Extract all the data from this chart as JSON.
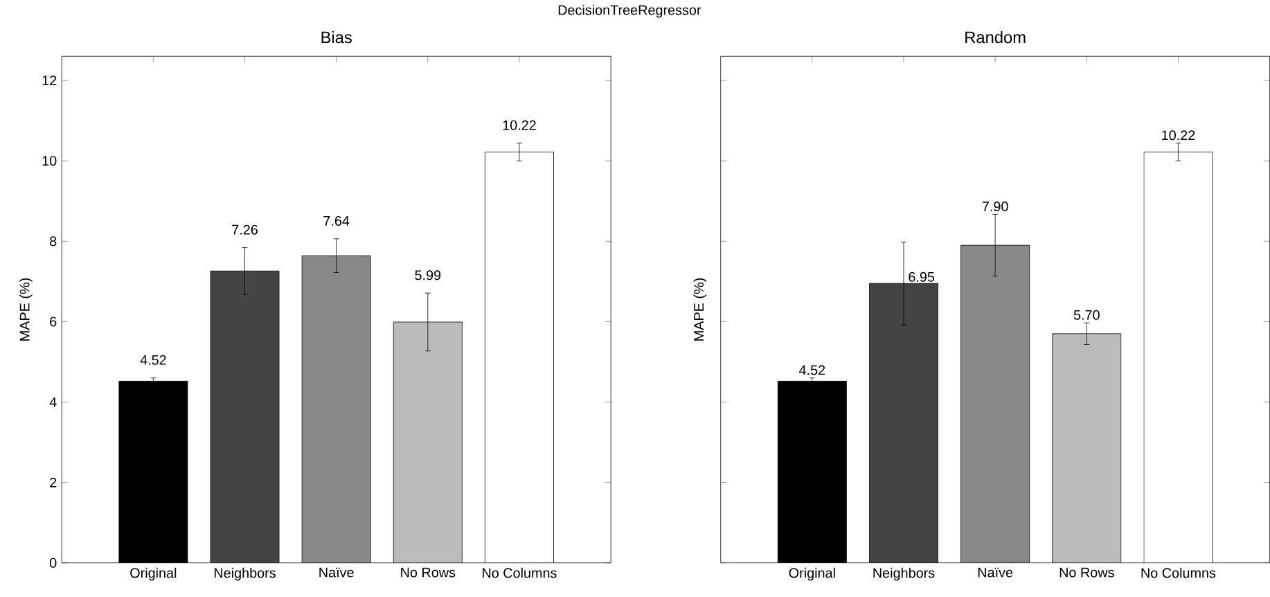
{
  "chart_data": [
    {
      "type": "bar",
      "title": "Bias",
      "ylabel": "MAPE (%)",
      "annotations": [
        "DecisionTreeRegressor"
      ],
      "categories": [
        "Original",
        "Neighbors",
        "Naïve",
        "No Rows",
        "No Columns"
      ],
      "values": [
        4.52,
        7.26,
        7.64,
        5.99,
        10.22
      ],
      "errors": [
        0.08,
        0.58,
        0.42,
        0.72,
        0.22
      ],
      "colors": [
        "#000000",
        "#444444",
        "#888888",
        "#bbbbbb",
        "#ffffff"
      ],
      "data_labels": true,
      "ylim": [
        0,
        12.6
      ],
      "yticks": [
        0,
        2,
        4,
        6,
        8,
        10,
        12
      ]
    },
    {
      "type": "bar",
      "title": "Random",
      "ylabel": "MAPE (%)",
      "categories": [
        "Original",
        "Neighbors",
        "Naïve",
        "No Rows",
        "No Columns"
      ],
      "values": [
        4.52,
        6.95,
        7.9,
        5.7,
        10.22
      ],
      "errors": [
        0.08,
        1.03,
        0.77,
        0.27,
        0.22
      ],
      "colors": [
        "#000000",
        "#444444",
        "#888888",
        "#bbbbbb",
        "#ffffff"
      ],
      "value_labels": [
        "4.52",
        "6.95",
        "7.90",
        "5.70",
        "10.22"
      ],
      "ylim": [
        0,
        12.6
      ],
      "yticks": [
        0,
        2,
        4,
        6,
        8,
        10,
        12
      ],
      "tick_labels": "x"
    }
  ]
}
